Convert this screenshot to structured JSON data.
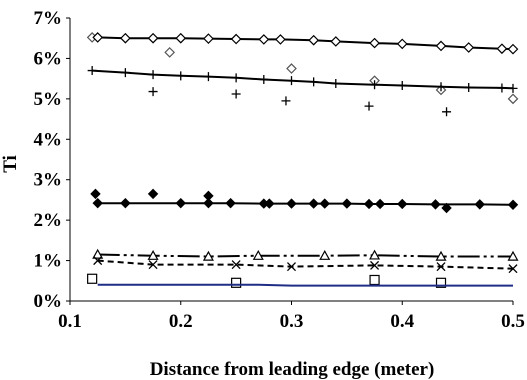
{
  "chart_data": {
    "type": "scatter",
    "xlabel": "Distance from leading edge (meter)",
    "ylabel": "Ti",
    "xlim": [
      0.1,
      0.5
    ],
    "ylim": [
      0,
      7
    ],
    "x_ticks": [
      "0.1",
      "0.2",
      "0.3",
      "0.4",
      "0.5"
    ],
    "y_ticks": [
      "0%",
      "1%",
      "2%",
      "3%",
      "4%",
      "5%",
      "6%",
      "7%"
    ],
    "grid": false,
    "legend": "none",
    "series": [
      {
        "kind": "points",
        "marker": "diamond-open",
        "color": "#555555",
        "points": [
          [
            0.12,
            6.52
          ],
          [
            0.19,
            6.15
          ],
          [
            0.3,
            5.75
          ],
          [
            0.375,
            5.45
          ],
          [
            0.435,
            5.22
          ],
          [
            0.5,
            5.0
          ]
        ]
      },
      {
        "kind": "points",
        "marker": "plus",
        "color": "#000000",
        "points": [
          [
            0.175,
            5.18
          ],
          [
            0.25,
            5.12
          ],
          [
            0.295,
            4.95
          ],
          [
            0.37,
            4.82
          ],
          [
            0.44,
            4.68
          ]
        ]
      },
      {
        "kind": "points",
        "marker": "diamond-filled",
        "color": "#000000",
        "points": [
          [
            0.123,
            2.65
          ],
          [
            0.175,
            2.65
          ],
          [
            0.225,
            2.6
          ],
          [
            0.44,
            2.3
          ]
        ]
      },
      {
        "kind": "points",
        "marker": "square-open",
        "color": "#000000",
        "points": [
          [
            0.12,
            0.55
          ],
          [
            0.25,
            0.45
          ],
          [
            0.375,
            0.52
          ],
          [
            0.435,
            0.45
          ]
        ]
      },
      {
        "kind": "line",
        "marker": "diamond-open",
        "color": "#000000",
        "dash": "",
        "points": [
          [
            0.125,
            6.52
          ],
          [
            0.15,
            6.5
          ],
          [
            0.175,
            6.5
          ],
          [
            0.2,
            6.5
          ],
          [
            0.225,
            6.49
          ],
          [
            0.25,
            6.48
          ],
          [
            0.275,
            6.47
          ],
          [
            0.29,
            6.47
          ],
          [
            0.32,
            6.45
          ],
          [
            0.34,
            6.42
          ],
          [
            0.375,
            6.38
          ],
          [
            0.4,
            6.36
          ],
          [
            0.435,
            6.31
          ],
          [
            0.46,
            6.27
          ],
          [
            0.49,
            6.24
          ],
          [
            0.5,
            6.23
          ]
        ]
      },
      {
        "kind": "line",
        "marker": "plus",
        "color": "#000000",
        "dash": "",
        "points": [
          [
            0.12,
            5.7
          ],
          [
            0.15,
            5.65
          ],
          [
            0.175,
            5.6
          ],
          [
            0.2,
            5.57
          ],
          [
            0.225,
            5.55
          ],
          [
            0.25,
            5.52
          ],
          [
            0.275,
            5.48
          ],
          [
            0.3,
            5.45
          ],
          [
            0.32,
            5.42
          ],
          [
            0.34,
            5.38
          ],
          [
            0.375,
            5.35
          ],
          [
            0.4,
            5.33
          ],
          [
            0.435,
            5.3
          ],
          [
            0.46,
            5.28
          ],
          [
            0.49,
            5.27
          ],
          [
            0.5,
            5.26
          ]
        ]
      },
      {
        "kind": "line",
        "marker": "diamond-filled",
        "color": "#000000",
        "dash": "",
        "points": [
          [
            0.125,
            2.42
          ],
          [
            0.15,
            2.42
          ],
          [
            0.2,
            2.42
          ],
          [
            0.225,
            2.42
          ],
          [
            0.245,
            2.42
          ],
          [
            0.275,
            2.41
          ],
          [
            0.28,
            2.41
          ],
          [
            0.3,
            2.41
          ],
          [
            0.32,
            2.41
          ],
          [
            0.33,
            2.41
          ],
          [
            0.35,
            2.41
          ],
          [
            0.37,
            2.4
          ],
          [
            0.38,
            2.4
          ],
          [
            0.4,
            2.4
          ],
          [
            0.43,
            2.39
          ],
          [
            0.47,
            2.39
          ],
          [
            0.5,
            2.38
          ]
        ]
      },
      {
        "kind": "line",
        "marker": "triangle-open",
        "color": "#000000",
        "dash": "22,4,3,4,3,4",
        "points": [
          [
            0.125,
            1.15
          ],
          [
            0.175,
            1.12
          ],
          [
            0.225,
            1.1
          ],
          [
            0.27,
            1.12
          ],
          [
            0.33,
            1.12
          ],
          [
            0.375,
            1.13
          ],
          [
            0.435,
            1.1
          ],
          [
            0.5,
            1.1
          ]
        ]
      },
      {
        "kind": "line",
        "marker": "x",
        "color": "#000000",
        "dash": "6,4",
        "points": [
          [
            0.125,
            1.0
          ],
          [
            0.175,
            0.9
          ],
          [
            0.25,
            0.9
          ],
          [
            0.3,
            0.85
          ],
          [
            0.375,
            0.88
          ],
          [
            0.435,
            0.85
          ],
          [
            0.5,
            0.8
          ]
        ]
      },
      {
        "kind": "line",
        "marker": "none",
        "color": "#1f2d86",
        "dash": "",
        "points": [
          [
            0.125,
            0.4
          ],
          [
            0.25,
            0.4
          ],
          [
            0.27,
            0.4
          ],
          [
            0.3,
            0.38
          ],
          [
            0.4,
            0.38
          ],
          [
            0.5,
            0.38
          ]
        ]
      }
    ]
  }
}
